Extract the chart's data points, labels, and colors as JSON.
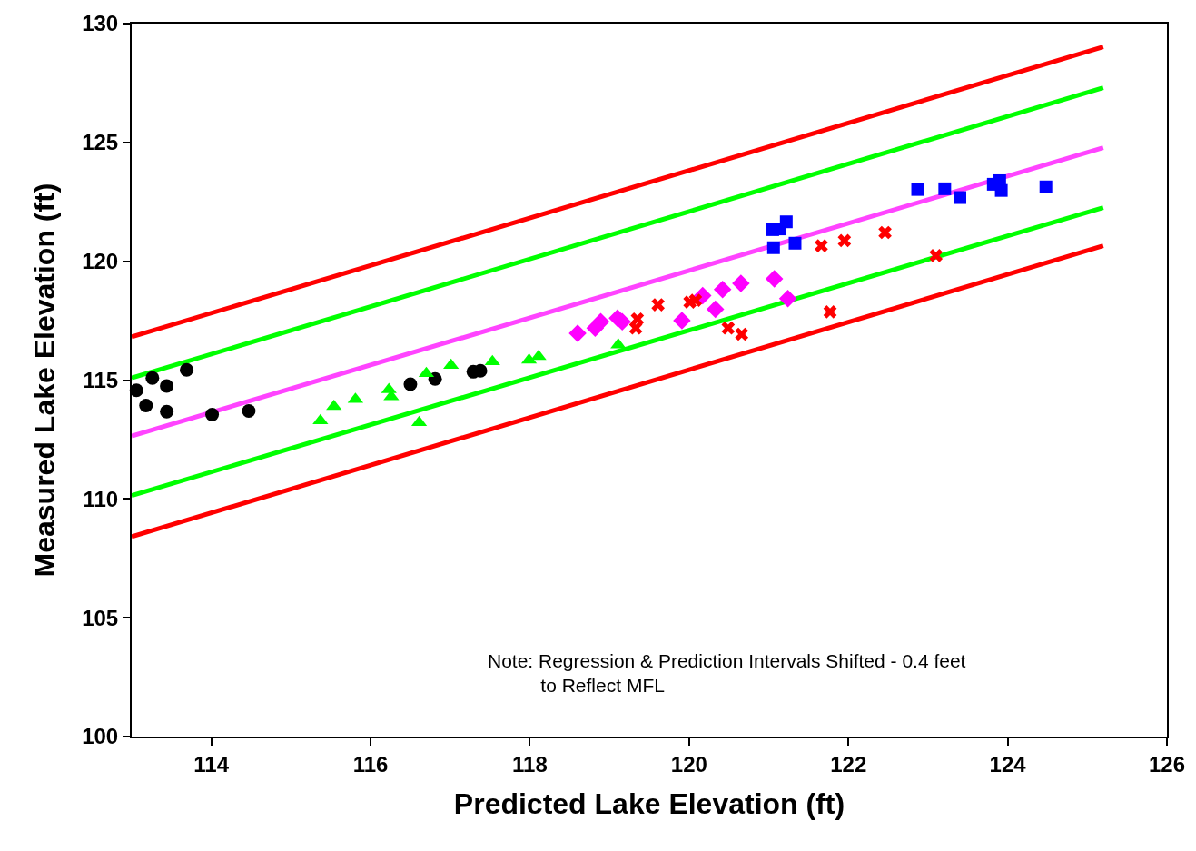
{
  "chart_data": {
    "type": "scatter",
    "xlabel": "Predicted Lake Elevation (ft)",
    "ylabel": "Measured Lake Elevation (ft)",
    "annotations": [
      "Note: Regression & Prediction Intervals Shifted - 0.4 feet\nto Reflect MFL"
    ],
    "xlim": [
      113,
      126
    ],
    "xticks": [
      114,
      116,
      118,
      120,
      122,
      124,
      126
    ],
    "ylim": [
      100,
      130
    ],
    "yticks": [
      100,
      105,
      110,
      115,
      120,
      125,
      130
    ],
    "grid": false,
    "series": [
      {
        "type": "line",
        "marker": "none",
        "color": "#ff0000",
        "x": [
          113,
          125.2
        ],
        "values": [
          116.82,
          129.02
        ]
      },
      {
        "type": "line",
        "marker": "none",
        "color": "#00ff00",
        "x": [
          113,
          125.2
        ],
        "values": [
          115.09,
          127.3
        ]
      },
      {
        "type": "line",
        "marker": "none",
        "color": "#ff44ff",
        "x": [
          113,
          125.2
        ],
        "values": [
          112.65,
          124.78
        ]
      },
      {
        "type": "line",
        "marker": "none",
        "color": "#00ff00",
        "x": [
          113,
          125.2
        ],
        "values": [
          110.14,
          122.26
        ]
      },
      {
        "type": "line",
        "marker": "none",
        "color": "#ff0000",
        "x": [
          113,
          125.2
        ],
        "values": [
          108.41,
          120.65
        ]
      },
      {
        "marker": "circle",
        "color": "#000000",
        "x": [
          113.06,
          113.18,
          113.26,
          113.44,
          113.44,
          113.69,
          114.01,
          114.47,
          116.5,
          116.81,
          117.29,
          117.38
        ],
        "values": [
          114.57,
          113.93,
          115.09,
          114.75,
          113.67,
          115.43,
          113.55,
          113.7,
          114.83,
          115.05,
          115.35,
          115.39
        ]
      },
      {
        "marker": "triangle",
        "color": "#00ff00",
        "x": [
          115.37,
          115.54,
          115.81,
          116.23,
          116.26,
          116.61,
          116.7,
          117.01,
          117.53,
          117.99,
          118.11,
          119.11
        ],
        "values": [
          113.29,
          113.89,
          114.19,
          114.6,
          114.3,
          113.21,
          115.28,
          115.62,
          115.77,
          115.84,
          115.99,
          116.48
        ]
      },
      {
        "marker": "diamond",
        "color": "#ff00ff",
        "x": [
          118.6,
          118.82,
          118.89,
          119.1,
          119.16,
          119.91,
          120.17,
          120.33,
          120.42,
          120.65,
          121.07,
          121.24
        ],
        "values": [
          116.97,
          117.19,
          117.46,
          117.61,
          117.46,
          117.5,
          118.55,
          117.98,
          118.81,
          119.07,
          119.26,
          118.43
        ]
      },
      {
        "marker": "cross",
        "color": "#ff0000",
        "x": [
          119.33,
          119.35,
          119.61,
          120.01,
          120.08,
          120.49,
          120.66,
          121.66,
          121.95,
          122.46,
          121.77,
          123.1
        ],
        "values": [
          117.19,
          117.57,
          118.17,
          118.28,
          118.36,
          117.19,
          116.93,
          120.65,
          120.87,
          121.21,
          117.87,
          120.24
        ]
      },
      {
        "marker": "square",
        "color": "#0000ff",
        "x": [
          121.05,
          121.14,
          121.22,
          121.06,
          121.33,
          122.87,
          123.21,
          123.4,
          123.82,
          123.9,
          123.92,
          124.48
        ],
        "values": [
          121.33,
          121.36,
          121.66,
          120.57,
          120.76,
          123.02,
          123.05,
          122.68,
          123.24,
          123.39,
          122.98,
          123.13
        ]
      }
    ]
  }
}
